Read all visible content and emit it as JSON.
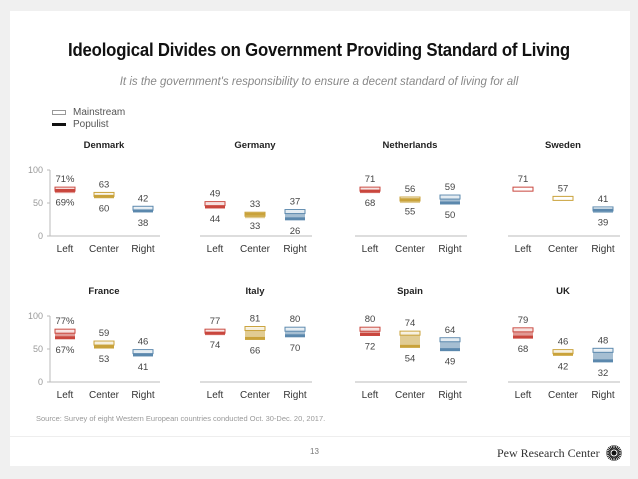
{
  "title": "Ideological Divides on Government Providing Standard of Living",
  "subtitle": "It is the government's responsibility to ensure a decent standard of living for all",
  "legend": {
    "mainstream": "Mainstream",
    "populist": "Populist"
  },
  "source": "Source: Survey of eight Western European countries conducted Oct. 30-Dec. 20, 2017.",
  "page_number": "13",
  "brand": "Pew Research Center",
  "colors": {
    "left": "#c9463d",
    "center": "#c9a23a",
    "right": "#5b88ad",
    "axis": "#bbbbbb",
    "text": "#444444"
  },
  "chart_data": [
    {
      "type": "range",
      "title": "Denmark",
      "categories": [
        "Left",
        "Center",
        "Right"
      ],
      "yticks": [
        0,
        50,
        100
      ],
      "ylim": [
        0,
        100
      ],
      "series": [
        {
          "name": "Mainstream",
          "values": [
            71,
            63,
            42
          ]
        },
        {
          "name": "Populist",
          "values": [
            69,
            60,
            38
          ]
        }
      ],
      "labels": [
        [
          "71%",
          "69%"
        ],
        [
          "63",
          "60"
        ],
        [
          "42",
          "38"
        ]
      ]
    },
    {
      "type": "range",
      "title": "Germany",
      "categories": [
        "Left",
        "Center",
        "Right"
      ],
      "ylim": [
        0,
        100
      ],
      "series": [
        {
          "name": "Mainstream",
          "values": [
            49,
            33,
            37
          ]
        },
        {
          "name": "Populist",
          "values": [
            44,
            33,
            26
          ]
        }
      ],
      "labels": [
        [
          "49",
          "44"
        ],
        [
          "33",
          "33"
        ],
        [
          "37",
          "26"
        ]
      ]
    },
    {
      "type": "range",
      "title": "Netherlands",
      "categories": [
        "Left",
        "Center",
        "Right"
      ],
      "ylim": [
        0,
        100
      ],
      "series": [
        {
          "name": "Mainstream",
          "values": [
            71,
            56,
            59
          ]
        },
        {
          "name": "Populist",
          "values": [
            68,
            55,
            50
          ]
        }
      ],
      "labels": [
        [
          "71",
          "68"
        ],
        [
          "56",
          "55"
        ],
        [
          "59",
          "50"
        ]
      ]
    },
    {
      "type": "range",
      "title": "Sweden",
      "categories": [
        "Left",
        "Center",
        "Right"
      ],
      "ylim": [
        0,
        100
      ],
      "series": [
        {
          "name": "Mainstream",
          "values": [
            71,
            57,
            41
          ]
        },
        {
          "name": "Populist",
          "values": [
            null,
            null,
            39
          ]
        }
      ],
      "labels": [
        [
          "71",
          ""
        ],
        [
          "57",
          ""
        ],
        [
          "41",
          "39"
        ]
      ]
    },
    {
      "type": "range",
      "title": "France",
      "categories": [
        "Left",
        "Center",
        "Right"
      ],
      "yticks": [
        0,
        50,
        100
      ],
      "ylim": [
        0,
        100
      ],
      "series": [
        {
          "name": "Mainstream",
          "values": [
            77,
            59,
            46
          ]
        },
        {
          "name": "Populist",
          "values": [
            67,
            53,
            41
          ]
        }
      ],
      "labels": [
        [
          "77%",
          "67%"
        ],
        [
          "59",
          "53"
        ],
        [
          "46",
          "41"
        ]
      ]
    },
    {
      "type": "range",
      "title": "Italy",
      "categories": [
        "Left",
        "Center",
        "Right"
      ],
      "ylim": [
        0,
        100
      ],
      "series": [
        {
          "name": "Mainstream",
          "values": [
            77,
            81,
            80
          ]
        },
        {
          "name": "Populist",
          "values": [
            74,
            66,
            70
          ]
        }
      ],
      "labels": [
        [
          "77",
          "74"
        ],
        [
          "81",
          "66"
        ],
        [
          "80",
          "70"
        ]
      ]
    },
    {
      "type": "range",
      "title": "Spain",
      "categories": [
        "Left",
        "Center",
        "Right"
      ],
      "ylim": [
        0,
        100
      ],
      "series": [
        {
          "name": "Mainstream",
          "values": [
            80,
            74,
            64
          ]
        },
        {
          "name": "Populist",
          "values": [
            72,
            54,
            49
          ]
        }
      ],
      "labels": [
        [
          "80",
          "72"
        ],
        [
          "74",
          "54"
        ],
        [
          "64",
          "49"
        ]
      ]
    },
    {
      "type": "range",
      "title": "UK",
      "categories": [
        "Left",
        "Center",
        "Right"
      ],
      "ylim": [
        0,
        100
      ],
      "series": [
        {
          "name": "Mainstream",
          "values": [
            79,
            46,
            48
          ]
        },
        {
          "name": "Populist",
          "values": [
            68,
            42,
            32
          ]
        }
      ],
      "labels": [
        [
          "79",
          "68"
        ],
        [
          "46",
          "42"
        ],
        [
          "48",
          "32"
        ]
      ]
    }
  ]
}
